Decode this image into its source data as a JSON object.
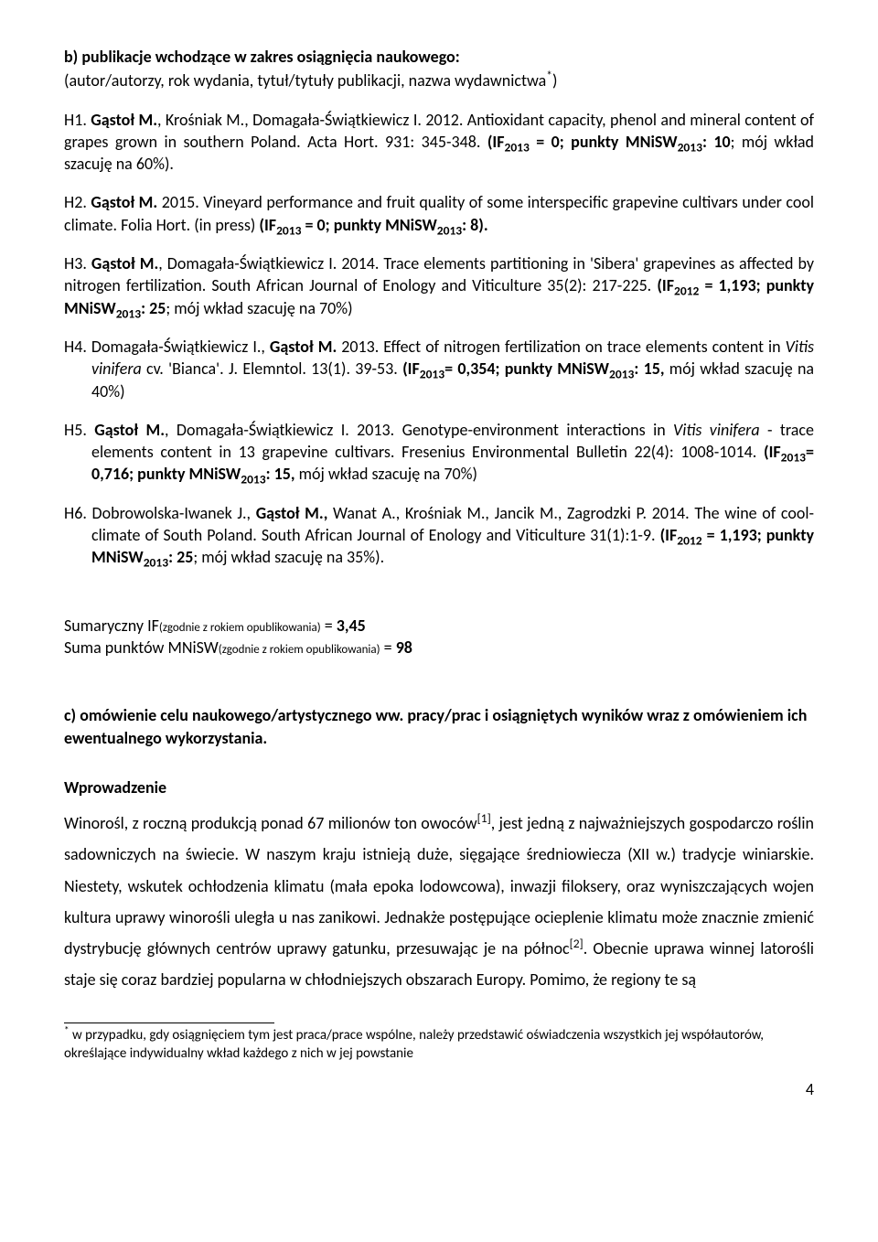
{
  "section_b": {
    "heading": "b) publikacje wchodzące w zakres osiągnięcia naukowego:",
    "sub_pre": "(autor/autorzy, rok wydania, tytuł/tytuły publikacji, nazwa wydawnictwa",
    "sub_post": ")",
    "asterisk": "*"
  },
  "h1": {
    "label": "H1. ",
    "authors": "Gąstoł M.",
    "rest1": ", Krośniak M., Domagała-Świątkiewicz I. 2012. Antioxidant capacity, phenol and mineral content of  grapes grown in southern Poland. Acta Hort. 931: 345-348. ",
    "if_part": "(IF",
    "if_sub": "2013",
    "if_rest": " = 0; punkty MNiSW",
    "mn_sub": "2013",
    "mn_rest": ": 10",
    "tail": "; mój wkład szacuję na 60%)."
  },
  "h2": {
    "label": "H2. ",
    "authors": "Gąstoł M.",
    "rest1": " 2015. Vineyard performance and fruit quality of some interspecific grapevine cultivars under cool climate. Folia Hort. (in press) ",
    "if_part": "(IF",
    "if_sub": "2013",
    "if_rest": " = 0; punkty MNiSW",
    "mn_sub": "2013",
    "mn_rest": ": 8).",
    "tail": ""
  },
  "h3": {
    "label": "H3. ",
    "authors": "Gąstoł M.",
    "rest1": ", Domagała-Świątkiewicz I. 2014. Trace elements partitioning in 'Sibera' grapevines as affected by nitrogen fertilization. South African Journal of Enology and Viticulture 35(2): 217-225. ",
    "if_part": "(IF",
    "if_sub": "2012",
    "if_rest": " = 1,193;   punkty MNiSW",
    "mn_sub": "2013",
    "mn_rest": ": 25",
    "tail": "; mój wkład szacuję na 70%)"
  },
  "h4": {
    "label": "H4. ",
    "pre": "Domagała-Świątkiewicz I., ",
    "authors": "Gąstoł M.",
    "rest1": " 2013. Effect of nitrogen fertilization on trace elements content in ",
    "italic": "Vitis vinifera",
    "rest2": " cv. 'Bianca'. J. Elemntol. 13(1). 39-53. ",
    "if_part": "(IF",
    "if_sub": "2013",
    "if_rest": "= 0,354; punkty MNiSW",
    "mn_sub": "2013",
    "mn_rest": ": 15,",
    "tail": " mój wkład szacuję na 40%)"
  },
  "h5": {
    "label": "H5. ",
    "authors": "Gąstoł M.",
    "rest1": ", Domagała-Świątkiewicz I. 2013. Genotype-environment interactions in ",
    "italic": "Vitis vinifera",
    "rest2": " - trace elements content in 13 grapevine cultivars. Fresenius Environmental Bulletin 22(4): 1008-1014. ",
    "if_part": "(IF",
    "if_sub": "2013",
    "if_rest": "= 0,716; punkty MNiSW",
    "mn_sub": "2013",
    "mn_rest": ": 15,",
    "tail": " mój wkład szacuję na 70%)"
  },
  "h6": {
    "label": "H6. ",
    "pre": "Dobrowolska-Iwanek J., ",
    "authors": "Gąstoł M.,",
    "rest1": " Wanat A., Krośniak M., Jancik M., Zagrodzki P. 2014. The wine of cool-climate of South Poland. South African Journal of Enology and Viticulture 31(1):1-9. ",
    "if_part": "(IF",
    "if_sub": "2012",
    "if_rest": " = 1,193; punkty MNiSW",
    "mn_sub": "2013",
    "mn_rest": ": 25",
    "tail": "; mój wkład szacuję na 35%)."
  },
  "summary": {
    "if_line_pre": "Sumaryczny IF",
    "if_small": "(zgodnie z rokiem opublikowania)",
    "if_eq": " = ",
    "if_val": "3,45",
    "mn_line_pre": "Suma punktów MNiSW",
    "mn_small": "(zgodnie z rokiem opublikowania)",
    "mn_eq": " =  ",
    "mn_val": "98"
  },
  "section_c": {
    "heading": "c) omówienie celu naukowego/artystycznego ww. pracy/prac i osiągniętych wyników wraz z omówieniem ich ewentualnego wykorzystania."
  },
  "intro": {
    "heading": "Wprowadzenie",
    "p1a": "Winorośl, z roczną produkcją ponad 67 milionów ton owoców",
    "sup1": "[1]",
    "p1b": ", jest jedną z najważniejszych gospodarczo roślin sadowniczych na świecie. W naszym kraju istnieją duże, sięgające średniowiecza (XII w.) tradycje winiarskie. Niestety, wskutek ochłodzenia klimatu (mała epoka lodowcowa), inwazji filoksery, oraz wyniszczających wojen kultura uprawy winorośli uległa u nas zanikowi. Jednakże postępujące ocieplenie klimatu może znacznie zmienić dystrybucję głównych centrów uprawy gatunku, przesuwając je na północ",
    "sup2": "[2]",
    "p1c": ". Obecnie uprawa winnej latorośli staje się coraz bardziej popularna w chłodniejszych obszarach Europy. Pomimo, że regiony te są"
  },
  "footnote": {
    "marker": "*",
    "text": " w przypadku, gdy osiągnięciem tym jest praca/prace wspólne, należy przedstawić oświadczenia wszystkich jej współautorów, określające indywidualny wkład każdego z nich w jej powstanie"
  },
  "page_number": "4"
}
